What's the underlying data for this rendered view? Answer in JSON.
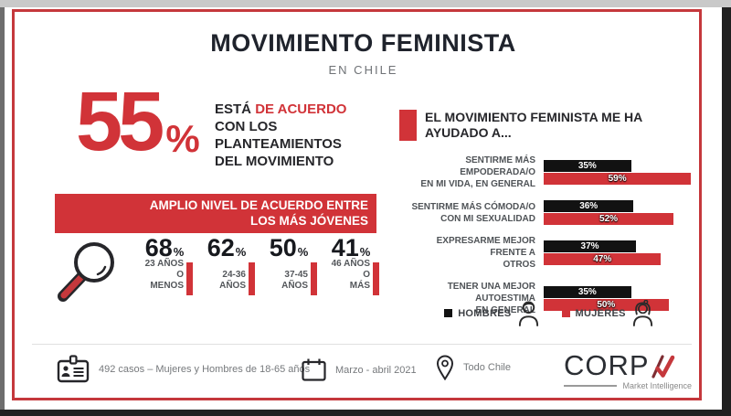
{
  "units": {
    "percent": "%"
  },
  "header": {
    "title": "MOVIMIENTO FEMINISTA",
    "subtitle": "EN CHILE"
  },
  "left": {
    "big_stat_value": "55",
    "statement": {
      "black1": "ESTÁ ",
      "red1": "DE ACUERDO",
      "line2": "CON LOS",
      "line3": "PLANTEAMIENTOS",
      "line4": "DEL MOVIMIENTO"
    },
    "banner_line1": "AMPLIO NIVEL DE ACUERDO ENTRE",
    "banner_line2": "LOS MÁS JÓVENES",
    "age_stats": [
      {
        "value": "68",
        "label1": "23 AÑOS O",
        "label2": "MENOS"
      },
      {
        "value": "62",
        "label1": "24-36",
        "label2": "AÑOS"
      },
      {
        "value": "50",
        "label1": "37-45",
        "label2": "AÑOS"
      },
      {
        "value": "41",
        "label1": "46 AÑOS O",
        "label2": "MÁS"
      }
    ]
  },
  "right": {
    "title_line1": "EL MOVIMIENTO FEMINISTA ME HA",
    "title_line2": "AYUDADO A...",
    "rows": [
      {
        "label1": "SENTIRME MÁS EMPODERADA/O",
        "label2": "EN MI VIDA, EN GENERAL"
      },
      {
        "label1": "SENTIRME MÁS CÓMODA/O",
        "label2": "CON MI SEXUALIDAD"
      },
      {
        "label1": "EXPRESARME MEJOR FRENTE A",
        "label2": "OTROS"
      },
      {
        "label1": "TENER UNA MEJOR AUTOESTIMA",
        "label2": "EN GENERAL"
      }
    ],
    "legend": [
      {
        "label": "HOMBRES",
        "color": "#121212",
        "icon": "man-icon"
      },
      {
        "label": "MUJERES",
        "color": "#d13338",
        "icon": "woman-icon"
      }
    ]
  },
  "chart_data": [
    {
      "type": "bar",
      "orientation": "horizontal",
      "title": "EL MOVIMIENTO FEMINISTA ME HA AYUDADO A...",
      "categories": [
        "SENTIRME MÁS EMPODERADA/O EN MI VIDA, EN GENERAL",
        "SENTIRME MÁS CÓMODA/O CON MI SEXUALIDAD",
        "EXPRESARME MEJOR FRENTE A OTROS",
        "TENER UNA MEJOR AUTOESTIMA EN GENERAL"
      ],
      "series": [
        {
          "name": "HOMBRES",
          "color": "#121212",
          "values": [
            35,
            36,
            37,
            35
          ]
        },
        {
          "name": "MUJERES",
          "color": "#d13338",
          "values": [
            59,
            52,
            47,
            50
          ]
        }
      ],
      "unit": "%",
      "xlim": [
        0,
        60
      ],
      "grid": false,
      "legend_position": "bottom"
    },
    {
      "type": "bar",
      "title": "AMPLIO NIVEL DE ACUERDO ENTRE LOS MÁS JÓVENES",
      "categories": [
        "23 AÑOS O MENOS",
        "24-36 AÑOS",
        "37-45 AÑOS",
        "46 AÑOS O MÁS"
      ],
      "values": [
        68,
        62,
        50,
        41
      ],
      "unit": "%"
    }
  ],
  "footer": {
    "items": [
      {
        "icon": "id-card-icon",
        "text": "492 casos – Mujeres y Hombres de 18-65 años"
      },
      {
        "icon": "calendar-icon",
        "text": "Marzo - abril 2021"
      },
      {
        "icon": "location-pin-icon",
        "text": "Todo Chile"
      }
    ],
    "logo": {
      "wordmark": "CORP",
      "mark": "A",
      "tagline": "Market Intelligence"
    }
  },
  "colors": {
    "accent_red": "#d13338",
    "frame_red": "#c5383c",
    "bar_black": "#121212",
    "title_dark": "#1f232c",
    "text_gray": "#76797c"
  }
}
